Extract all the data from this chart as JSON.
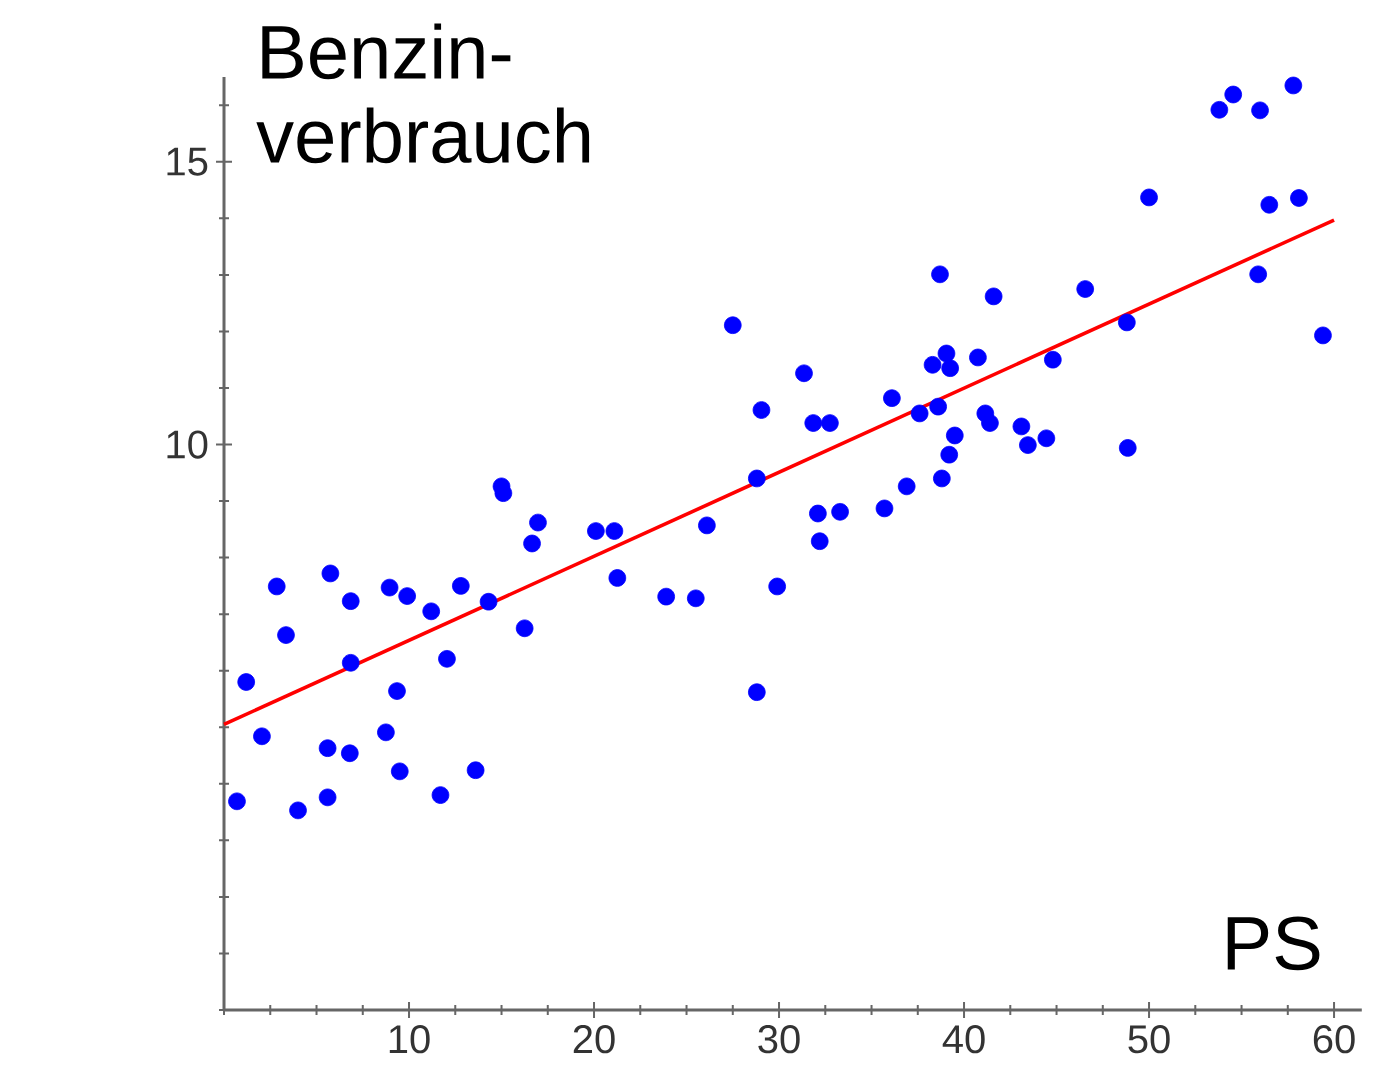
{
  "chart_data": {
    "type": "scatter",
    "xlabel": "PS",
    "ylabel": "Benzin-verbrauch",
    "xlim": [
      0,
      61.5
    ],
    "ylim": [
      0,
      16.5
    ],
    "xticks": [
      {
        "value": 0,
        "label": null
      },
      {
        "value": 2.5,
        "label": null
      },
      {
        "value": 5,
        "label": null
      },
      {
        "value": 7.5,
        "label": null
      },
      10,
      {
        "value": 12.5,
        "label": null
      },
      {
        "value": 15,
        "label": null
      },
      {
        "value": 17.5,
        "label": null
      },
      20,
      {
        "value": 22.5,
        "label": null
      },
      {
        "value": 25,
        "label": null
      },
      {
        "value": 27.5,
        "label": null
      },
      30,
      {
        "value": 32.5,
        "label": null
      },
      {
        "value": 35,
        "label": null
      },
      {
        "value": 37.5,
        "label": null
      },
      40,
      {
        "value": 42.5,
        "label": null
      },
      {
        "value": 45,
        "label": null
      },
      {
        "value": 47.5,
        "label": null
      },
      50,
      {
        "value": 52.5,
        "label": null
      },
      {
        "value": 55,
        "label": null
      },
      {
        "value": 57.5,
        "label": null
      },
      60
    ],
    "yticks": [
      {
        "value": 0,
        "label": null
      },
      {
        "value": 1,
        "label": null
      },
      {
        "value": 2,
        "label": null
      },
      {
        "value": 3,
        "label": null
      },
      {
        "value": 4,
        "label": null
      },
      {
        "value": 5,
        "label": null
      },
      {
        "value": 6,
        "label": null
      },
      {
        "value": 7,
        "label": null
      },
      {
        "value": 8,
        "label": null
      },
      {
        "value": 9,
        "label": null
      },
      10,
      {
        "value": 11,
        "label": null
      },
      {
        "value": 12,
        "label": null
      },
      {
        "value": 13,
        "label": null
      },
      {
        "value": 14,
        "label": null
      },
      15,
      {
        "value": 16,
        "label": null
      }
    ],
    "marker": "circle",
    "grid": false,
    "series": [
      {
        "color": "#0000ff",
        "x": [
          0.7,
          1.2,
          2.05,
          2.85,
          3.35,
          4.0,
          5.6,
          5.6,
          5.75,
          6.8,
          6.85,
          6.85,
          8.75,
          8.95,
          9.35,
          9.5,
          9.9,
          11.2,
          11.7,
          12.05,
          12.8,
          13.6,
          14.3,
          15.0,
          15.1,
          16.25,
          16.65,
          16.97,
          20.1,
          21.1,
          21.26,
          23.9,
          25.5,
          26.1,
          28.8,
          27.5,
          29.05,
          28.8,
          32.1,
          33.3,
          35.7,
          32.2,
          29.9,
          31.35,
          31.85,
          32.75,
          36.1,
          36.9,
          37.6,
          38.3,
          38.6,
          38.7,
          38.8,
          39.05,
          39.25,
          39.2,
          39.5,
          40.75,
          41.15,
          41.4,
          41.6,
          43.1,
          43.45,
          44.45,
          44.8,
          46.55,
          48.8,
          48.85,
          50.0,
          53.8,
          54.55,
          56.0,
          57.8,
          56.5,
          58.1,
          55.9,
          59.4
        ],
        "values": [
          3.69,
          5.8,
          4.84,
          7.49,
          6.63,
          3.53,
          3.76,
          4.63,
          7.72,
          4.54,
          7.23,
          6.14,
          4.91,
          7.47,
          5.64,
          4.22,
          7.32,
          7.05,
          3.8,
          6.21,
          7.5,
          4.24,
          7.22,
          9.26,
          9.14,
          6.75,
          8.25,
          8.62,
          8.47,
          8.47,
          7.64,
          7.31,
          7.28,
          8.57,
          5.62,
          12.11,
          10.61,
          9.4,
          8.78,
          8.81,
          8.87,
          8.29,
          7.49,
          11.26,
          10.38,
          10.38,
          10.82,
          9.26,
          10.55,
          11.41,
          10.67,
          13.01,
          9.4,
          11.61,
          11.35,
          9.82,
          10.16,
          11.54,
          10.55,
          10.38,
          12.62,
          10.32,
          9.99,
          10.11,
          11.5,
          12.75,
          12.16,
          9.94,
          14.37,
          15.92,
          16.19,
          15.91,
          16.35,
          14.24,
          14.36,
          13.01,
          11.93
        ]
      },
      {
        "type": "line",
        "color": "#ff0000",
        "marker": "none",
        "x": [
          0,
          60
        ],
        "values": [
          5.05,
          13.97
        ]
      }
    ]
  }
}
